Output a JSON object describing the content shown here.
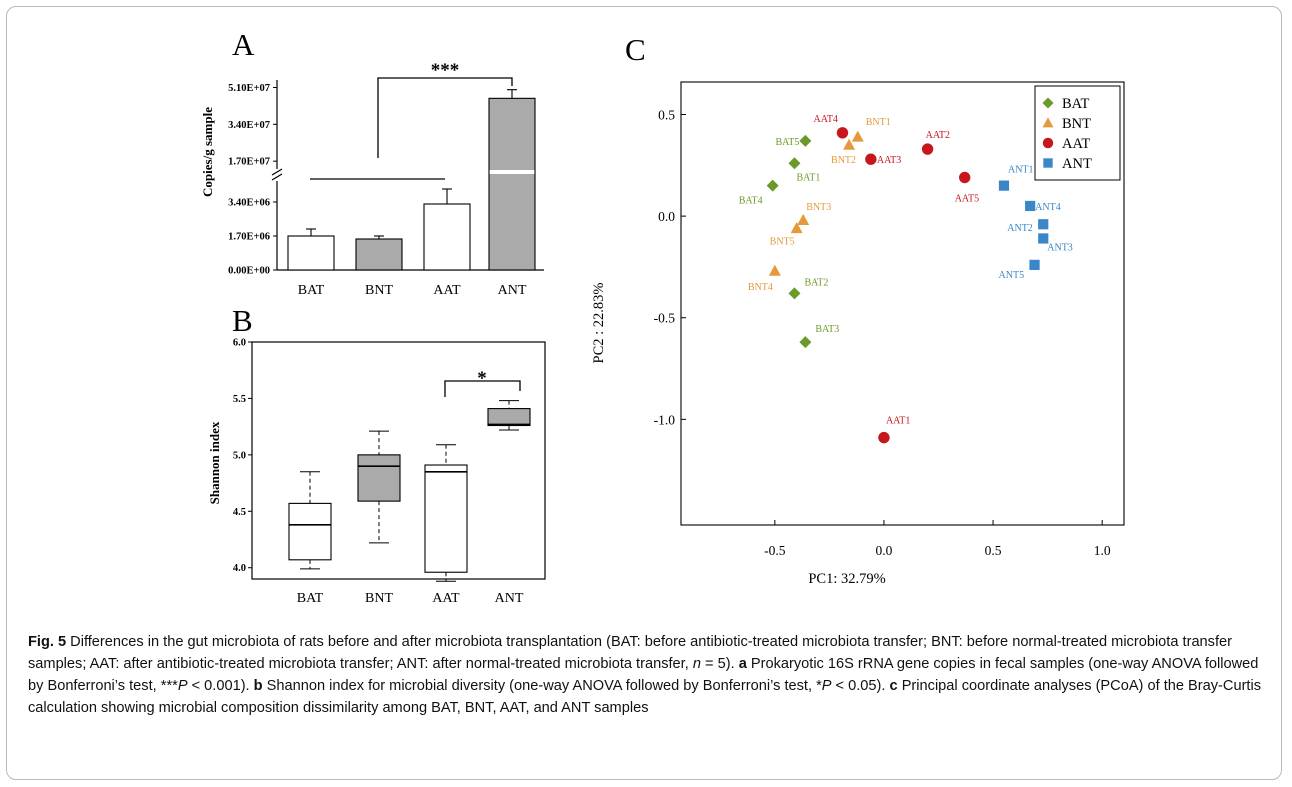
{
  "chart_data": [
    {
      "panel": "A",
      "type": "bar",
      "ylabel": "Copies/g sample",
      "categories": [
        "BAT",
        "BNT",
        "AAT",
        "ANT"
      ],
      "values": [
        1700000.0,
        1550000.0,
        3300000.0,
        46000000.0
      ],
      "errors": [
        350000.0,
        150000.0,
        750000.0,
        4000000.0
      ],
      "fills": [
        "#ffffff",
        "#aaaaaa",
        "#ffffff",
        "#aaaaaa"
      ],
      "axis_break": true,
      "lower_range": [
        0,
        4600000.0
      ],
      "upper_range": [
        12000000.0,
        54000000.0
      ],
      "ticks_lower": [
        {
          "value": 0,
          "label": "0.00E+00"
        },
        {
          "value": 1700000,
          "label": "1.70E+06"
        },
        {
          "value": 3400000,
          "label": "3.40E+06"
        }
      ],
      "ticks_upper": [
        {
          "value": 17000000,
          "label": "1.70E+07"
        },
        {
          "value": 34000000,
          "label": "3.40E+07"
        },
        {
          "value": 51000000,
          "label": "5.10E+07"
        }
      ],
      "significance": "***"
    },
    {
      "panel": "B",
      "type": "box",
      "ylabel": "Shannon index",
      "categories": [
        "BAT",
        "BNT",
        "AAT",
        "ANT"
      ],
      "boxes": [
        {
          "min": 3.99,
          "q1": 4.07,
          "median": 4.38,
          "q3": 4.57,
          "max": 4.85,
          "fill": "#ffffff"
        },
        {
          "min": 4.22,
          "q1": 4.59,
          "median": 4.9,
          "q3": 5.0,
          "max": 5.21,
          "fill": "#aaaaaa"
        },
        {
          "min": 3.88,
          "q1": 3.96,
          "median": 4.85,
          "q3": 4.91,
          "max": 5.09,
          "fill": "#ffffff"
        },
        {
          "min": 5.22,
          "q1": 5.26,
          "median": 5.27,
          "q3": 5.41,
          "max": 5.48,
          "fill": "#aaaaaa"
        }
      ],
      "ylim": [
        3.9,
        6.0
      ],
      "yticks": [
        "4.0",
        "4.5",
        "5.0",
        "5.5",
        "6.0"
      ],
      "significance": "*"
    },
    {
      "panel": "C",
      "type": "scatter",
      "xlabel": "PC1: 32.79%",
      "ylabel": "PC2 : 22.83%",
      "xlim": [
        -0.93,
        1.1
      ],
      "ylim": [
        -1.52,
        0.66
      ],
      "xticks": [
        "-0.5",
        "0.0",
        "0.5",
        "1.0"
      ],
      "yticks": [
        "0.5",
        "0.0",
        "-0.5",
        "-1.0"
      ],
      "legend_position": "top-right",
      "series": [
        {
          "name": "BAT",
          "color": "#6b9a2a",
          "marker": "diamond",
          "points": [
            {
              "label": "BAT1",
              "x": -0.41,
              "y": 0.26
            },
            {
              "label": "BAT2",
              "x": -0.41,
              "y": -0.38
            },
            {
              "label": "BAT3",
              "x": -0.36,
              "y": -0.62
            },
            {
              "label": "BAT4",
              "x": -0.51,
              "y": 0.15
            },
            {
              "label": "BAT5",
              "x": -0.36,
              "y": 0.37
            }
          ]
        },
        {
          "name": "BNT",
          "color": "#e49a3c",
          "marker": "triangle",
          "points": [
            {
              "label": "BNT1",
              "x": -0.12,
              "y": 0.39
            },
            {
              "label": "BNT2",
              "x": -0.16,
              "y": 0.35
            },
            {
              "label": "BNT3",
              "x": -0.37,
              "y": -0.02
            },
            {
              "label": "BNT4",
              "x": -0.5,
              "y": -0.27
            },
            {
              "label": "BNT5",
              "x": -0.4,
              "y": -0.06
            }
          ]
        },
        {
          "name": "AAT",
          "color": "#c8161d",
          "marker": "circle",
          "points": [
            {
              "label": "AAT1",
              "x": 0.0,
              "y": -1.09
            },
            {
              "label": "AAT2",
              "x": 0.2,
              "y": 0.33
            },
            {
              "label": "AAT3",
              "x": -0.06,
              "y": 0.28
            },
            {
              "label": "AAT4",
              "x": -0.19,
              "y": 0.41
            },
            {
              "label": "AAT5",
              "x": 0.37,
              "y": 0.19
            }
          ]
        },
        {
          "name": "ANT",
          "color": "#3a86c8",
          "marker": "square",
          "points": [
            {
              "label": "ANT1",
              "x": 0.55,
              "y": 0.15
            },
            {
              "label": "ANT2",
              "x": 0.73,
              "y": -0.04
            },
            {
              "label": "ANT3",
              "x": 0.73,
              "y": -0.11
            },
            {
              "label": "ANT4",
              "x": 0.67,
              "y": 0.05
            },
            {
              "label": "ANT5",
              "x": 0.69,
              "y": -0.24
            }
          ]
        }
      ]
    }
  ],
  "panel_letters": {
    "a": "A",
    "b": "B",
    "c": "C"
  },
  "caption": {
    "fig_label": "Fig. 5",
    "intro": " Differences in the gut microbiota of rats before and after microbiota transplantation (BAT: before antibiotic-treated microbiota transfer; BNT: before normal-treated microbiota transfer samples; AAT: after antibiotic-treated microbiota transfer; ANT: after normal-treated microbiota transfer, ",
    "n_var": "n",
    "n_val": " = 5). ",
    "a_letter": "a",
    "a_text": " Prokaryotic 16S rRNA gene copies in fecal samples (one-way ANOVA followed by Bonferroni’s test, ***",
    "p_var_a": "P",
    "a_end": " < 0.001). ",
    "b_letter": "b",
    "b_text": " Shannon index for microbial diversity (one-way ANOVA followed by Bonferroni’s test, *",
    "p_var_b": "P",
    "b_end": " < 0.05). ",
    "c_letter": "c",
    "c_text": " Principal coordinate analyses (PCoA) of the Bray-Curtis calculation showing microbial composition dissimilarity among BAT, BNT, AAT, and ANT samples"
  }
}
